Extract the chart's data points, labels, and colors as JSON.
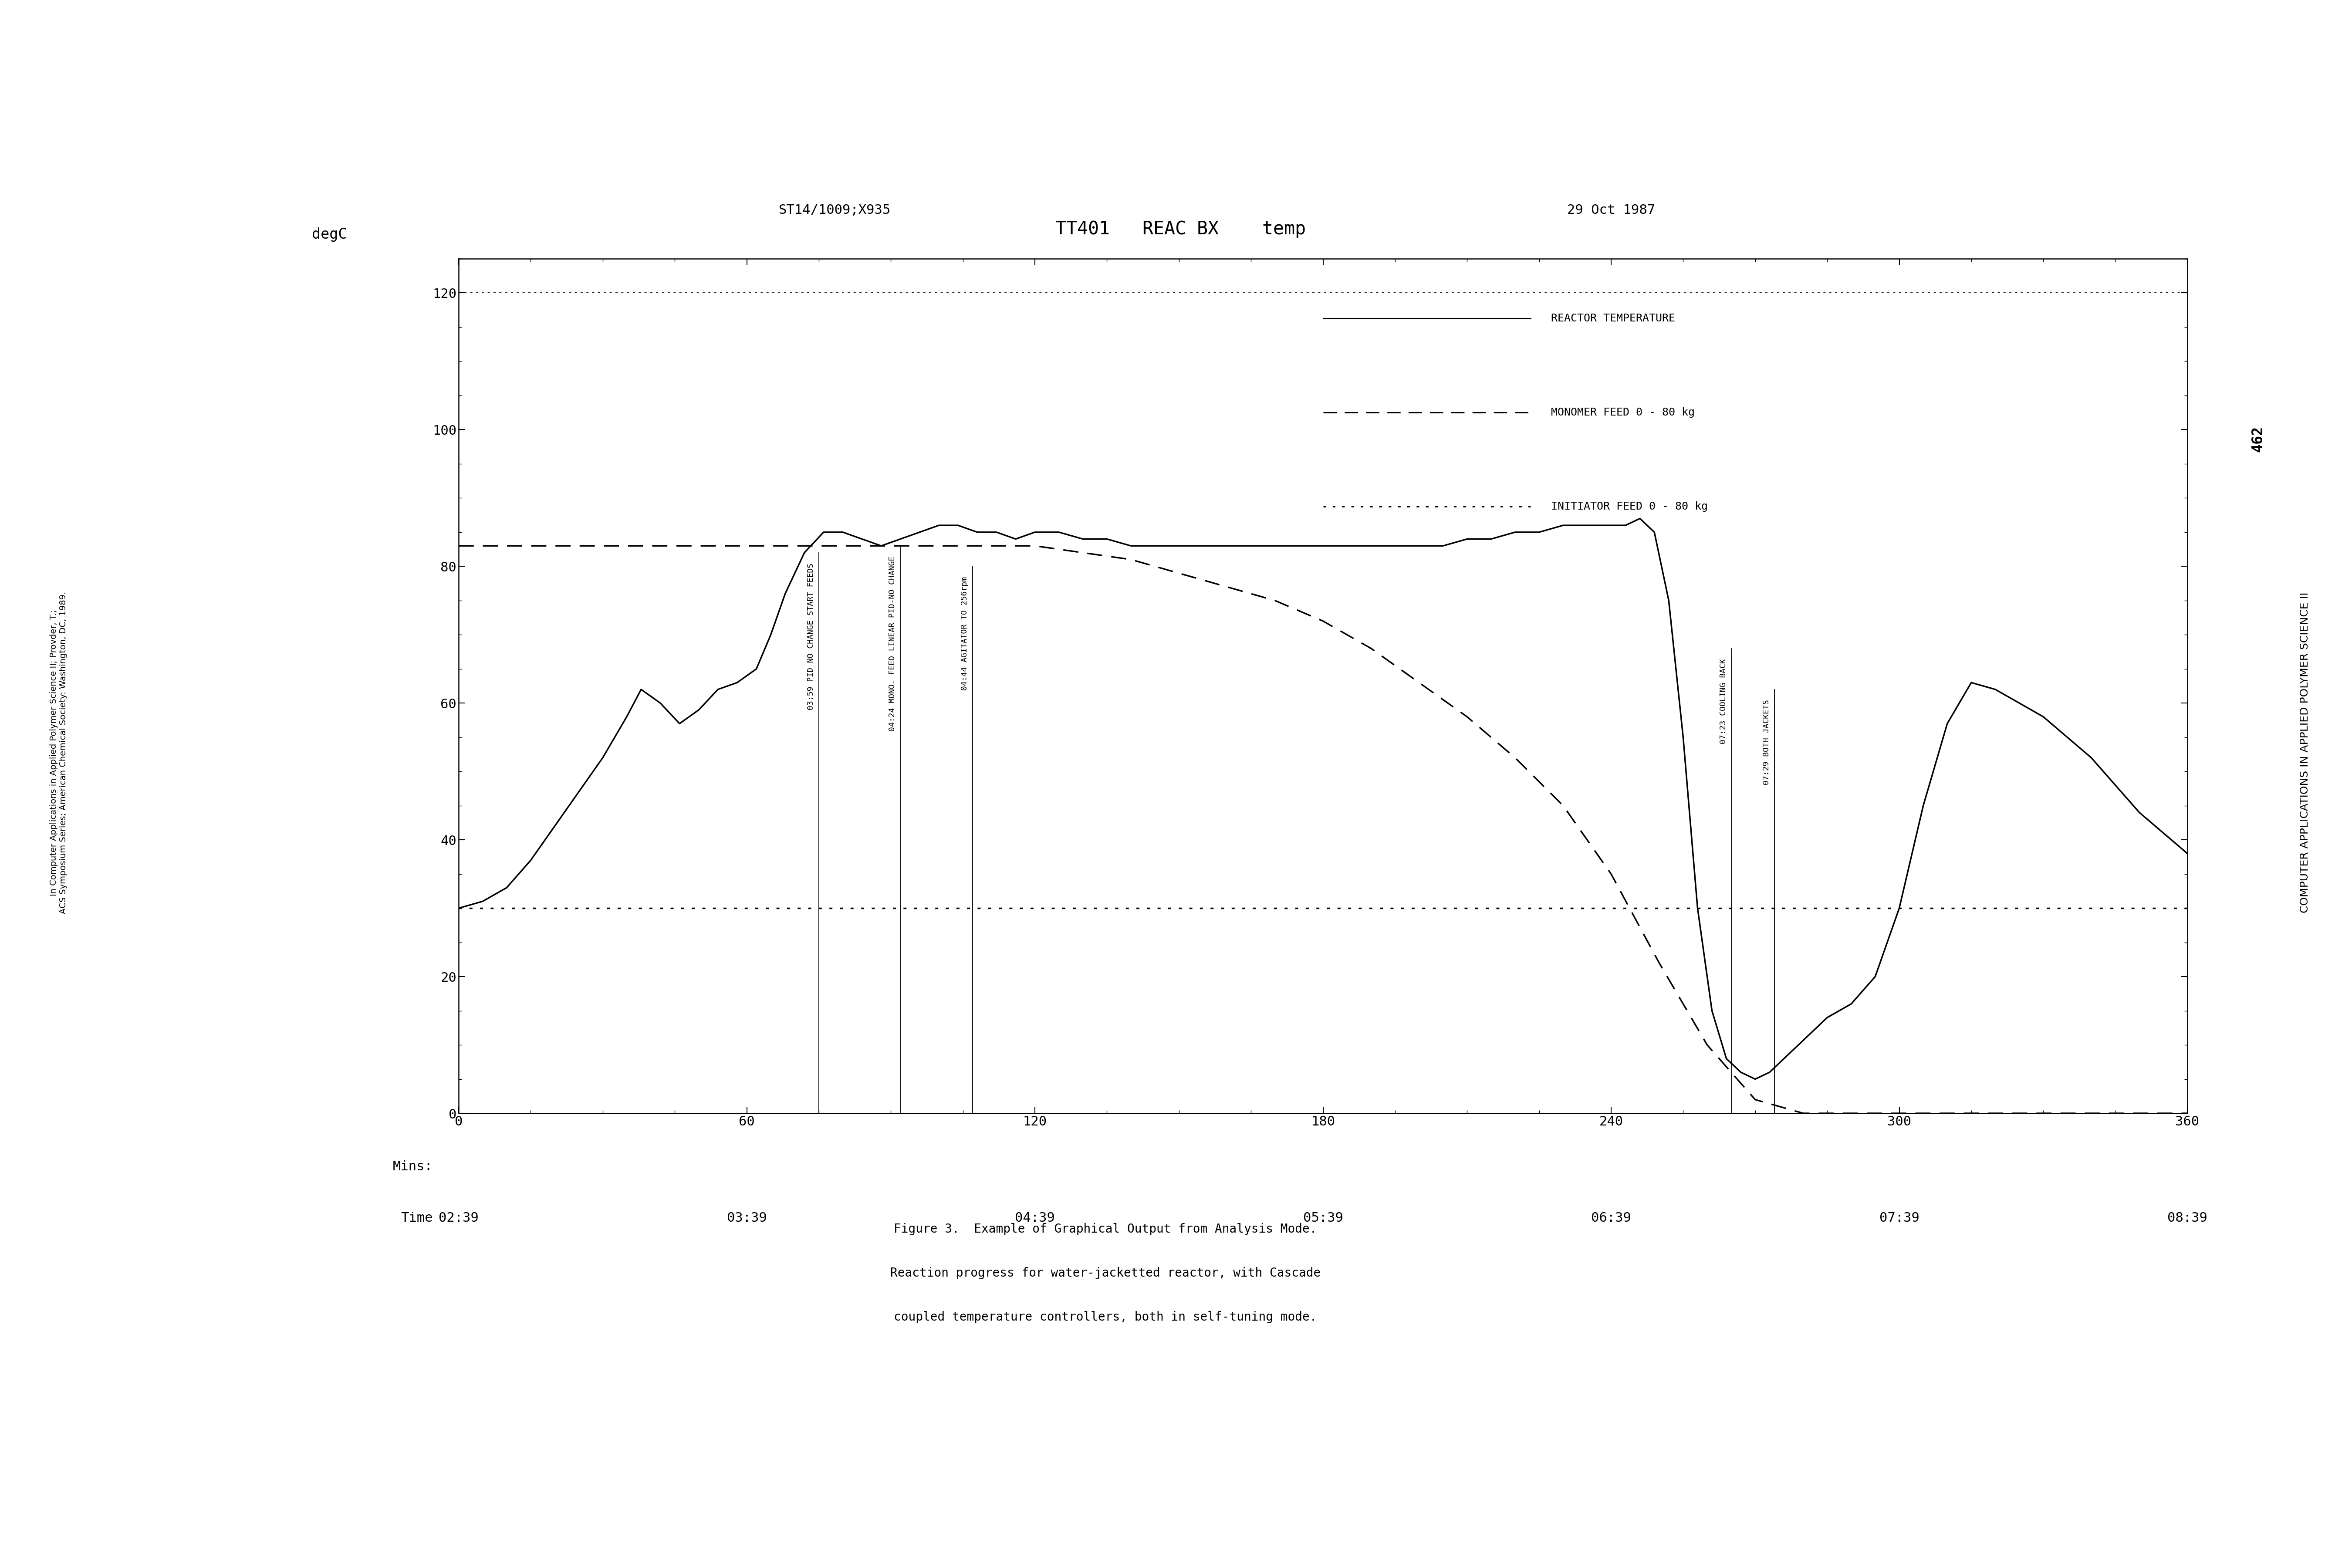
{
  "title_top_left": "ST14/1009;X935",
  "title_top_right": "29 Oct 1987",
  "title_main": "TT401   REAC BX    temp",
  "ylabel": "degC",
  "x_ticks_mins": [
    0,
    60,
    120,
    180,
    240,
    300,
    360
  ],
  "x_ticks_time": [
    "02:39",
    "03:39",
    "04:39",
    "05:39",
    "06:39",
    "07:39",
    "08:39"
  ],
  "y_ticks": [
    0,
    20,
    40,
    60,
    80,
    100,
    120
  ],
  "xlim": [
    0,
    360
  ],
  "ylim": [
    0,
    125
  ],
  "background_color": "#ffffff",
  "legend_entries": [
    {
      "label": "REACTOR TEMPERATURE",
      "linestyle": "-"
    },
    {
      "label": "MONOMER FEED 0 - 80 kg",
      "linestyle": "--"
    },
    {
      "label": "INITIATOR FEED 0 - 80 kg",
      "linestyle": "dotdot"
    }
  ],
  "reactor_temp_x": [
    0,
    5,
    10,
    15,
    20,
    25,
    30,
    35,
    38,
    42,
    46,
    50,
    54,
    58,
    62,
    65,
    68,
    72,
    76,
    80,
    84,
    88,
    92,
    96,
    100,
    104,
    108,
    112,
    116,
    120,
    125,
    130,
    135,
    140,
    145,
    150,
    155,
    160,
    165,
    170,
    175,
    180,
    185,
    190,
    195,
    200,
    205,
    210,
    215,
    220,
    225,
    230,
    235,
    240,
    243,
    246,
    249,
    252,
    255,
    258,
    261,
    264,
    267,
    270,
    273,
    276,
    279,
    282,
    285,
    290,
    295,
    300,
    305,
    310,
    315,
    320,
    325,
    330,
    335,
    340,
    345,
    350,
    355,
    360
  ],
  "reactor_temp_y": [
    30,
    31,
    33,
    37,
    42,
    47,
    52,
    58,
    62,
    60,
    57,
    59,
    62,
    63,
    65,
    70,
    76,
    82,
    85,
    85,
    84,
    83,
    84,
    85,
    86,
    86,
    85,
    85,
    84,
    85,
    85,
    84,
    84,
    83,
    83,
    83,
    83,
    83,
    83,
    83,
    83,
    83,
    83,
    83,
    83,
    83,
    83,
    84,
    84,
    85,
    85,
    86,
    86,
    86,
    86,
    87,
    85,
    75,
    55,
    30,
    15,
    8,
    6,
    5,
    6,
    8,
    10,
    12,
    14,
    16,
    20,
    30,
    45,
    57,
    63,
    62,
    60,
    58,
    55,
    52,
    48,
    44,
    41,
    38
  ],
  "monomer_feed_x": [
    0,
    60,
    65,
    70,
    75,
    80,
    85,
    90,
    95,
    100,
    105,
    110,
    115,
    120,
    130,
    140,
    150,
    160,
    170,
    180,
    190,
    200,
    210,
    220,
    230,
    240,
    250,
    260,
    270,
    280,
    290,
    300,
    360
  ],
  "monomer_feed_y": [
    83,
    83,
    83,
    83,
    83,
    83,
    83,
    83,
    83,
    83,
    83,
    83,
    83,
    83,
    82,
    81,
    79,
    77,
    75,
    72,
    68,
    63,
    58,
    52,
    45,
    35,
    22,
    10,
    2,
    0,
    0,
    0,
    0
  ],
  "initiator_feed_x": [
    0,
    60,
    65,
    70,
    75,
    80,
    85,
    90,
    95,
    100,
    105,
    110,
    115,
    120,
    130,
    140,
    150,
    160,
    170,
    180,
    190,
    200,
    210,
    220,
    230,
    240,
    250,
    260,
    270,
    280,
    290,
    300,
    360
  ],
  "initiator_feed_y": [
    30,
    30,
    30,
    30,
    30,
    30,
    30,
    30,
    30,
    30,
    30,
    30,
    30,
    30,
    30,
    30,
    30,
    30,
    30,
    30,
    30,
    30,
    30,
    30,
    30,
    30,
    30,
    30,
    30,
    30,
    30,
    30,
    30
  ],
  "annot_configs": [
    {
      "x": 75,
      "text": "03:59 PID NO CHANGE START FEEDS",
      "y_top": 82
    },
    {
      "x": 92,
      "text": "04:24 MONO. FEED LINEAR PID-NO CHANGE",
      "y_top": 83
    },
    {
      "x": 107,
      "text": "04:44 AGITATOR TO 256rpm",
      "y_top": 80
    },
    {
      "x": 265,
      "text": "07:23 COOLING BACK",
      "y_top": 68
    },
    {
      "x": 274,
      "text": "07:29 BOTH JACKETS",
      "y_top": 62
    }
  ],
  "page_number": "462",
  "caption_line1": "Figure 3.  Example of Graphical Output from Analysis Mode.",
  "caption_line2": "Reaction progress for water-jacketted reactor, with Cascade",
  "caption_line3": "coupled temperature controllers, both in self-tuning mode.",
  "side_text_left_line1": "In Computer Applications in Applied Polymer Science II; Provder, T.;",
  "side_text_left_line2": "ACS Symposium Series; American Chemical Society: Washington, DC, 1989.",
  "side_text_right": "COMPUTER APPLICATIONS IN APPLIED POLYMER SCIENCE II"
}
